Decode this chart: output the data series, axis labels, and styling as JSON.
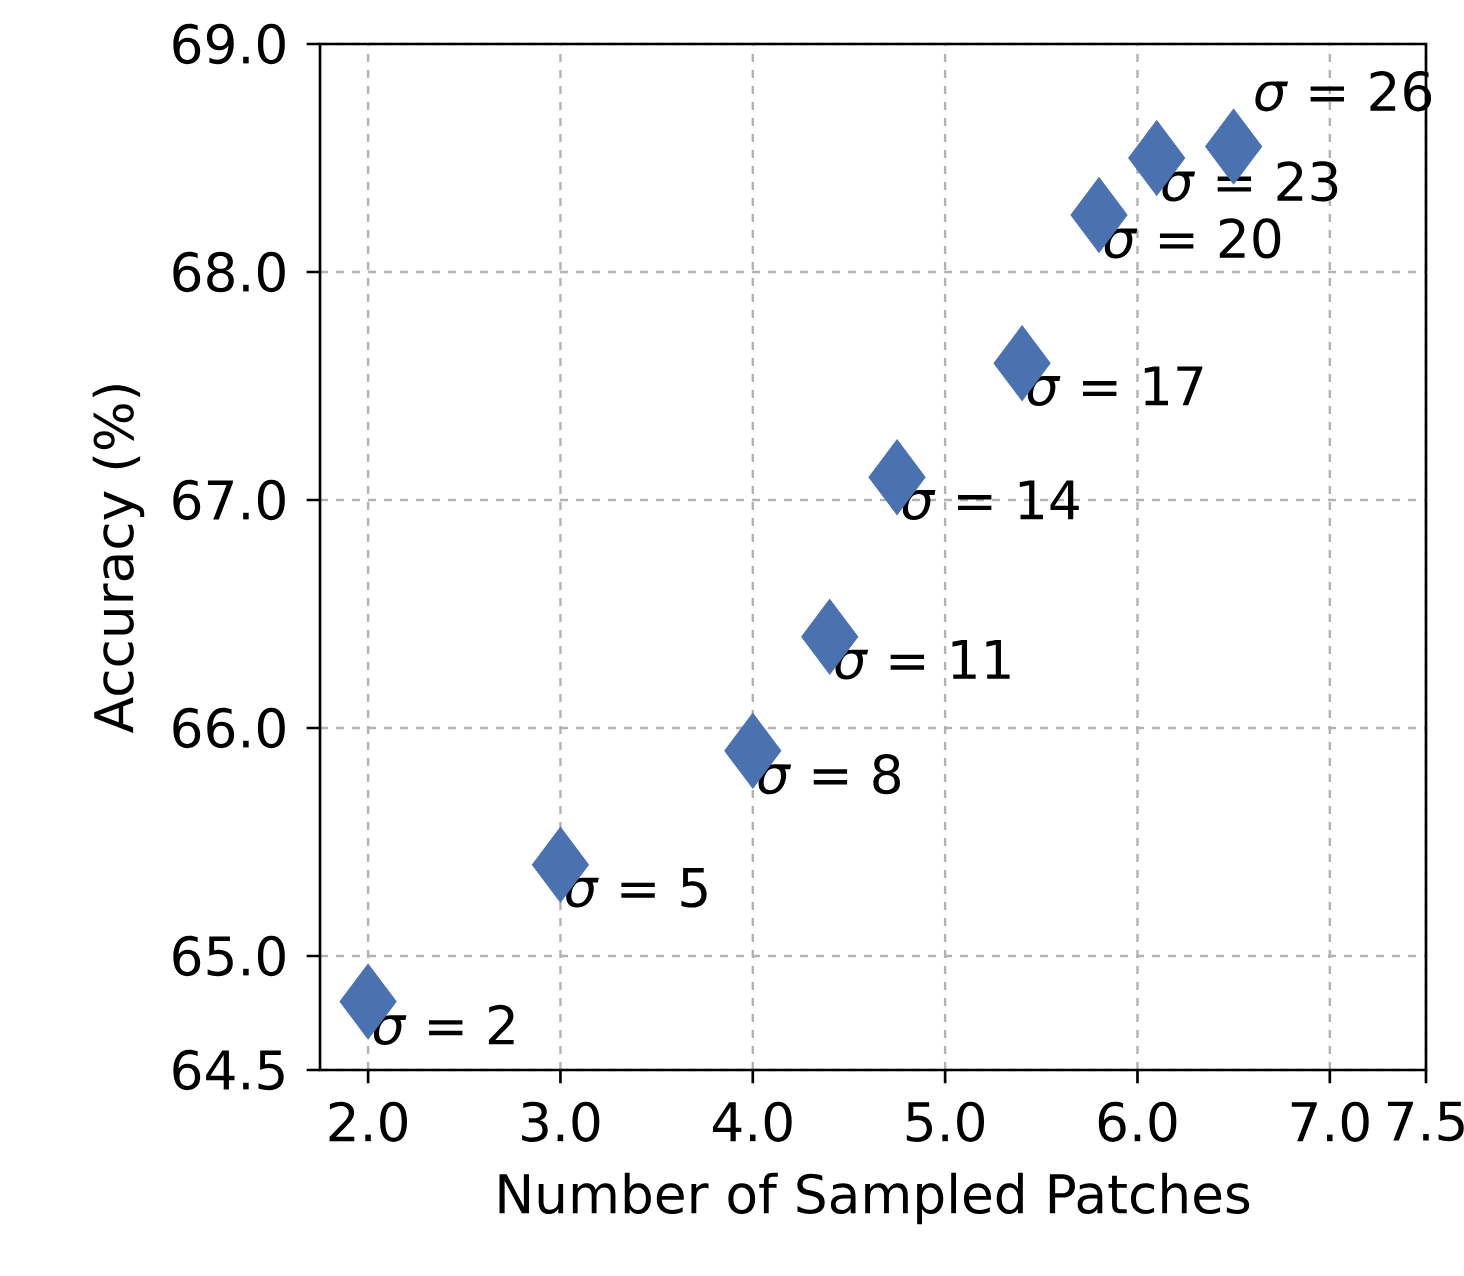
{
  "chart_data": {
    "type": "scatter",
    "xlabel": "Number of Sampled Patches",
    "ylabel": "Accuracy (%)",
    "x": [
      2.0,
      3.0,
      4.0,
      4.4,
      4.75,
      5.4,
      5.8,
      6.1,
      6.5
    ],
    "series": [
      {
        "color": "#4a72b0",
        "values": [
          64.8,
          65.4,
          65.9,
          66.4,
          67.1,
          67.6,
          68.25,
          68.5,
          68.55
        ]
      }
    ],
    "marker": "diamond",
    "grid": true,
    "xlim": [
      1.75,
      7.5
    ],
    "ylim": [
      64.5,
      69.0
    ],
    "xticks": [
      {
        "value": 2,
        "label": "2.0"
      },
      {
        "value": 3,
        "label": "3.0"
      },
      {
        "value": 4,
        "label": "4.0"
      },
      {
        "value": 5,
        "label": "5.0"
      },
      {
        "value": 6,
        "label": "6.0"
      },
      {
        "value": 7,
        "label": "7.0"
      },
      {
        "value": 7.5,
        "label": "7.5"
      }
    ],
    "yticks": [
      {
        "value": 64.5,
        "label": "64.5"
      },
      {
        "value": 65,
        "label": "65.0"
      },
      {
        "value": 66,
        "label": "66.0"
      },
      {
        "value": 67,
        "label": "67.0"
      },
      {
        "value": 68,
        "label": "68.0"
      },
      {
        "value": 69,
        "label": "69.0"
      }
    ],
    "annotations": [
      {
        "text": "*σ* = 2",
        "x": 2.0,
        "y": 64.8
      },
      {
        "text": "*σ* = 5",
        "x": 3.0,
        "y": 65.4
      },
      {
        "text": "*σ* = 8",
        "x": 4.0,
        "y": 65.9
      },
      {
        "text": "*σ* = 11",
        "x": 4.4,
        "y": 66.4
      },
      {
        "text": "*σ* = 14",
        "x": 4.75,
        "y": 67.1
      },
      {
        "text": "*σ* = 17",
        "x": 5.4,
        "y": 67.6
      },
      {
        "text": "*σ* = 20",
        "x": 5.8,
        "y": 68.25
      },
      {
        "text": "*σ* = 23",
        "x": 6.1,
        "y": 68.5
      },
      {
        "text": "*σ* = 26",
        "x": 6.5,
        "y": 68.55
      }
    ]
  }
}
